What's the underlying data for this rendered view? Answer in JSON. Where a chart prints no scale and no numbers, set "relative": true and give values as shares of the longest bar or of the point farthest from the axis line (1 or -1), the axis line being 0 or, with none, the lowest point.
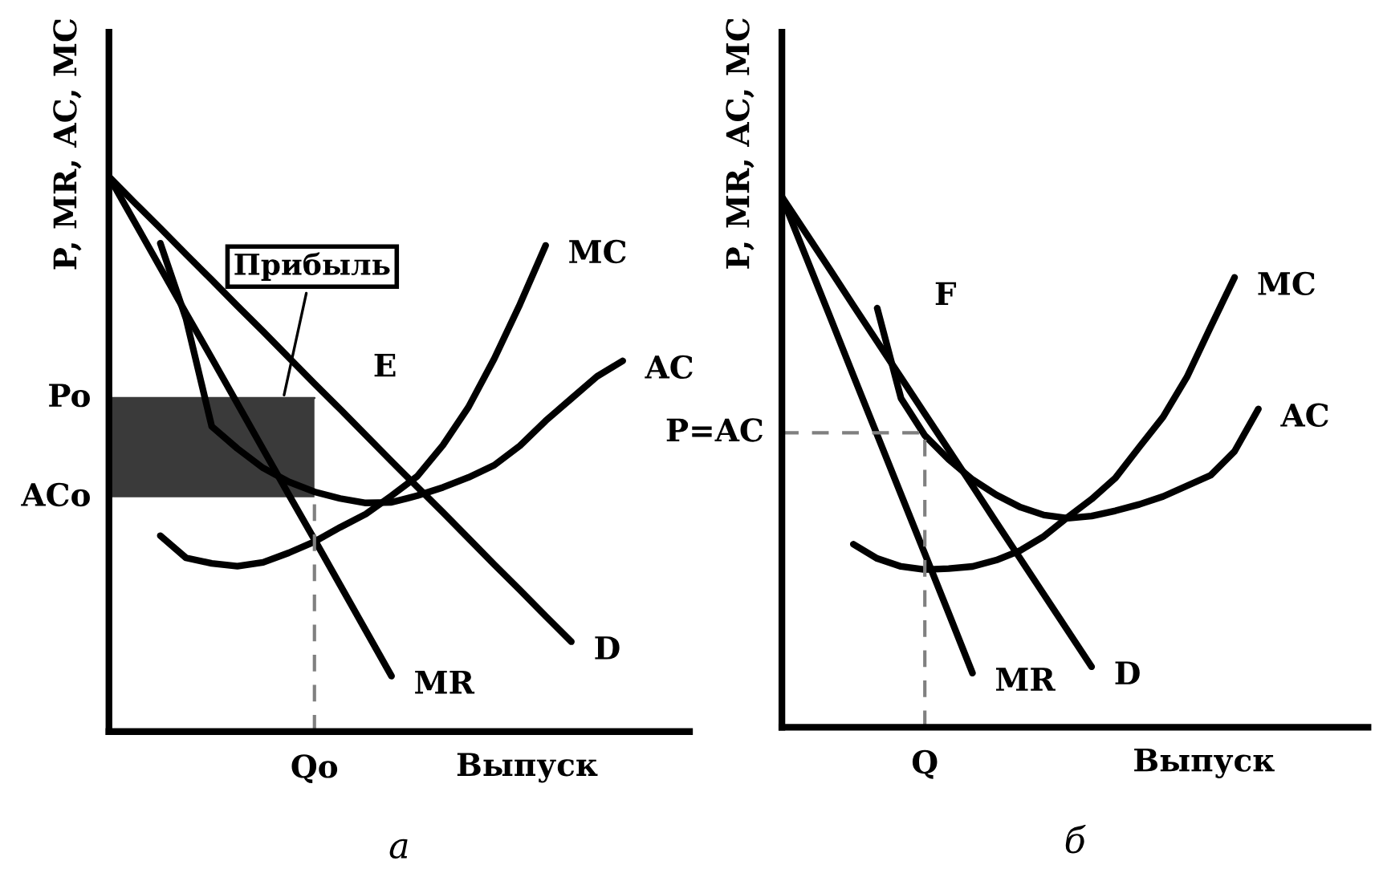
{
  "chart_data": [
    {
      "type": "line",
      "relative": true,
      "title": "а",
      "xlabel": "Выпуск",
      "ylabel": "P, MR, AC, MC",
      "categories": [
        null,
        null,
        null,
        null,
        null,
        null,
        null,
        null,
        null,
        null,
        null,
        null,
        null,
        null,
        null,
        null,
        null,
        null,
        null,
        null,
        null,
        null,
        null
      ],
      "series": [
        {
          "color": "#3a3a3a",
          "values": [
            0.601,
            0.601,
            0.601,
            0.601,
            0.601,
            0.601,
            0.601,
            0.601,
            0.601,
            null,
            null,
            null,
            null,
            null,
            null,
            null,
            null,
            null,
            null,
            null,
            null,
            null,
            null
          ],
          "lower": [
            0.422,
            0.422,
            0.422,
            0.422,
            0.422,
            0.422,
            0.422,
            0.422,
            0.422,
            null,
            null,
            null,
            null,
            null,
            null,
            null,
            null,
            null,
            null,
            null,
            null,
            null,
            null
          ],
          "upper": [
            0.601,
            0.601,
            0.601,
            0.601,
            0.601,
            0.601,
            0.601,
            0.601,
            0.601,
            null,
            null,
            null,
            null,
            null,
            null,
            null,
            null,
            null,
            null,
            null,
            null,
            null,
            null
          ]
        },
        {
          "name": "D",
          "color": "#000000",
          "values": [
            1,
            0.953,
            0.907,
            0.86,
            0.814,
            0.767,
            0.721,
            0.674,
            0.627,
            0.581,
            0.534,
            0.487,
            0.441,
            0.395,
            0.348,
            0.301,
            0.255,
            0.208,
            0.162,
            null,
            null,
            null,
            null
          ]
        },
        {
          "name": "MR",
          "color": "#000000",
          "values": [
            1,
            0.918,
            0.836,
            0.754,
            0.673,
            0.591,
            0.509,
            0.427,
            0.346,
            0.264,
            0.182,
            0.1,
            null,
            null,
            null,
            null,
            null,
            null,
            null,
            null,
            null,
            null,
            null
          ]
        },
        {
          "name": "AC",
          "color": "#000000",
          "values": [
            null,
            null,
            0.88,
            0.744,
            0.55,
            0.51,
            0.475,
            0.45,
            0.432,
            0.42,
            0.412,
            0.413,
            0.425,
            0.44,
            0.458,
            0.48,
            0.515,
            0.56,
            0.6,
            0.64,
            0.668,
            null,
            null
          ]
        },
        {
          "name": "MC",
          "color": "#000000",
          "values": [
            null,
            null,
            0.353,
            0.313,
            0.303,
            0.298,
            0.305,
            0.322,
            0.342,
            0.368,
            0.392,
            0.425,
            0.46,
            0.516,
            0.585,
            0.672,
            0.77,
            0.876,
            null,
            null,
            null,
            null,
            null
          ]
        }
      ],
      "annotations": [
        "E",
        "Прибыль",
        "Po",
        "ACo",
        "Qo"
      ]
    },
    {
      "type": "line",
      "relative": true,
      "title": "б",
      "xlabel": "Выпуск",
      "ylabel": "P, MR, AC, MC",
      "categories": [
        null,
        null,
        null,
        null,
        null,
        null,
        null,
        null,
        null,
        null,
        null,
        null,
        null,
        null,
        null,
        null,
        null,
        null,
        null,
        null,
        null,
        null,
        null,
        null,
        null
      ],
      "series": [
        {
          "name": "D",
          "color": "#000000",
          "values": [
            1,
            0.932,
            0.864,
            0.795,
            0.727,
            0.659,
            0.591,
            0.523,
            0.455,
            0.386,
            0.318,
            0.25,
            0.182,
            0.114,
            null,
            null,
            null,
            null,
            null,
            null,
            null,
            null,
            null,
            null,
            null
          ]
        },
        {
          "name": "MR",
          "color": "#000000",
          "values": [
            1,
            0.888,
            0.776,
            0.663,
            0.551,
            0.439,
            0.327,
            0.215,
            0.102,
            null,
            null,
            null,
            null,
            null,
            null,
            null,
            null,
            null,
            null,
            null,
            null,
            null,
            null,
            null,
            null
          ]
        },
        {
          "name": "AC",
          "color": "#000000",
          "values": [
            null,
            null,
            null,
            null,
            0.79,
            0.62,
            0.55,
            0.505,
            0.467,
            0.438,
            0.415,
            0.4,
            0.394,
            0.398,
            0.408,
            0.42,
            0.435,
            0.455,
            0.475,
            0.52,
            0.6,
            null,
            null,
            null,
            null
          ]
        },
        {
          "name": "MC",
          "color": "#000000",
          "values": [
            null,
            null,
            null,
            0.345,
            0.318,
            0.303,
            0.297,
            0.299,
            0.303,
            0.315,
            0.333,
            0.36,
            0.396,
            0.43,
            0.47,
            0.528,
            0.585,
            0.66,
            0.755,
            0.848,
            null,
            null,
            null,
            null,
            null
          ]
        }
      ],
      "ref_lines": [
        {
          "axis": "y",
          "value": 0.555,
          "label": "P=AC",
          "line_style": "dashed",
          "color": "#808080"
        }
      ],
      "annotations": [
        "F",
        "Q"
      ]
    }
  ]
}
